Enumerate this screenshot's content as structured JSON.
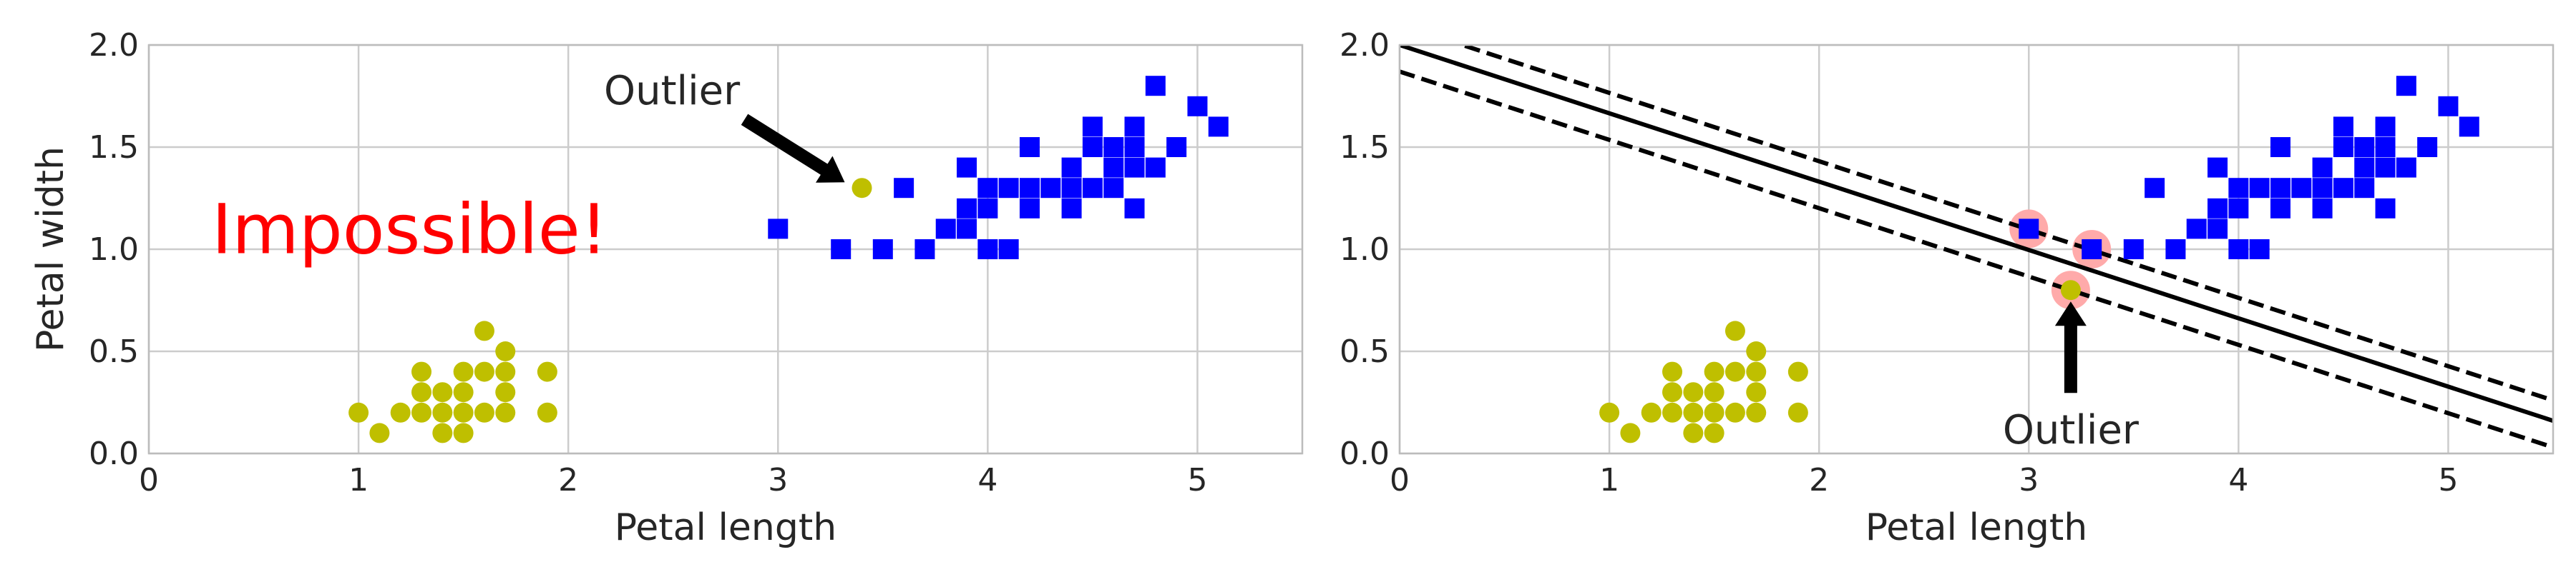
{
  "chart_data": [
    {
      "type": "scatter",
      "xlabel": "",
      "ylabel": "Petal width",
      "xlim": [
        0,
        5.5
      ],
      "ylim": [
        0,
        2.0
      ],
      "xticks": [
        "0",
        "1",
        "2",
        "3",
        "4",
        "5"
      ],
      "yticks": [
        "0.0",
        "0.5",
        "1.0",
        "1.5",
        "2.0"
      ],
      "grid": true,
      "series": [
        {
          "marker": "circle",
          "color": "#bfbf00",
          "points": [
            [
              1.0,
              0.2
            ],
            [
              1.1,
              0.1
            ],
            [
              1.2,
              0.2
            ],
            [
              1.3,
              0.2
            ],
            [
              1.3,
              0.3
            ],
            [
              1.3,
              0.4
            ],
            [
              1.4,
              0.1
            ],
            [
              1.4,
              0.2
            ],
            [
              1.4,
              0.3
            ],
            [
              1.5,
              0.1
            ],
            [
              1.5,
              0.2
            ],
            [
              1.5,
              0.3
            ],
            [
              1.5,
              0.4
            ],
            [
              1.6,
              0.2
            ],
            [
              1.6,
              0.4
            ],
            [
              1.6,
              0.6
            ],
            [
              1.7,
              0.2
            ],
            [
              1.7,
              0.3
            ],
            [
              1.7,
              0.4
            ],
            [
              1.7,
              0.5
            ],
            [
              1.9,
              0.2
            ],
            [
              1.9,
              0.4
            ],
            [
              3.4,
              1.3
            ]
          ]
        },
        {
          "marker": "square",
          "color": "#0000ff",
          "points": [
            [
              3.0,
              1.1
            ],
            [
              3.3,
              1.0
            ],
            [
              3.5,
              1.0
            ],
            [
              3.6,
              1.3
            ],
            [
              3.7,
              1.0
            ],
            [
              3.8,
              1.1
            ],
            [
              3.9,
              1.1
            ],
            [
              3.9,
              1.2
            ],
            [
              3.9,
              1.4
            ],
            [
              4.0,
              1.0
            ],
            [
              4.0,
              1.2
            ],
            [
              4.0,
              1.3
            ],
            [
              4.1,
              1.0
            ],
            [
              4.1,
              1.3
            ],
            [
              4.2,
              1.2
            ],
            [
              4.2,
              1.3
            ],
            [
              4.2,
              1.5
            ],
            [
              4.3,
              1.3
            ],
            [
              4.4,
              1.2
            ],
            [
              4.4,
              1.3
            ],
            [
              4.4,
              1.4
            ],
            [
              4.5,
              1.3
            ],
            [
              4.5,
              1.5
            ],
            [
              4.5,
              1.6
            ],
            [
              4.6,
              1.3
            ],
            [
              4.6,
              1.4
            ],
            [
              4.6,
              1.5
            ],
            [
              4.7,
              1.2
            ],
            [
              4.7,
              1.4
            ],
            [
              4.7,
              1.5
            ],
            [
              4.7,
              1.6
            ],
            [
              4.8,
              1.4
            ],
            [
              4.8,
              1.8
            ],
            [
              4.9,
              1.5
            ],
            [
              5.0,
              1.7
            ],
            [
              5.1,
              1.6
            ]
          ]
        }
      ],
      "annotations": [
        {
          "text": "Outlier",
          "arrow_to": [
            3.4,
            1.3
          ]
        },
        {
          "text": "Impossible!",
          "color": "#ff0000"
        }
      ]
    },
    {
      "type": "scatter",
      "xlabel": "Petal length",
      "ylabel": "",
      "xlim": [
        0,
        5.5
      ],
      "ylim": [
        0,
        2.0
      ],
      "xticks": [
        "0",
        "1",
        "2",
        "3",
        "4",
        "5"
      ],
      "yticks": [
        "0.0",
        "0.5",
        "1.0",
        "1.5",
        "2.0"
      ],
      "grid": true,
      "series": [
        {
          "marker": "circle",
          "color": "#bfbf00",
          "points": [
            [
              1.0,
              0.2
            ],
            [
              1.1,
              0.1
            ],
            [
              1.2,
              0.2
            ],
            [
              1.3,
              0.2
            ],
            [
              1.3,
              0.3
            ],
            [
              1.3,
              0.4
            ],
            [
              1.4,
              0.1
            ],
            [
              1.4,
              0.2
            ],
            [
              1.4,
              0.3
            ],
            [
              1.5,
              0.1
            ],
            [
              1.5,
              0.2
            ],
            [
              1.5,
              0.3
            ],
            [
              1.5,
              0.4
            ],
            [
              1.6,
              0.2
            ],
            [
              1.6,
              0.4
            ],
            [
              1.6,
              0.6
            ],
            [
              1.7,
              0.2
            ],
            [
              1.7,
              0.3
            ],
            [
              1.7,
              0.4
            ],
            [
              1.7,
              0.5
            ],
            [
              1.9,
              0.2
            ],
            [
              1.9,
              0.4
            ],
            [
              3.2,
              0.8
            ]
          ]
        },
        {
          "marker": "square",
          "color": "#0000ff",
          "points": [
            [
              3.0,
              1.1
            ],
            [
              3.3,
              1.0
            ],
            [
              3.5,
              1.0
            ],
            [
              3.6,
              1.3
            ],
            [
              3.7,
              1.0
            ],
            [
              3.8,
              1.1
            ],
            [
              3.9,
              1.1
            ],
            [
              3.9,
              1.2
            ],
            [
              3.9,
              1.4
            ],
            [
              4.0,
              1.0
            ],
            [
              4.0,
              1.2
            ],
            [
              4.0,
              1.3
            ],
            [
              4.1,
              1.0
            ],
            [
              4.1,
              1.3
            ],
            [
              4.2,
              1.2
            ],
            [
              4.2,
              1.3
            ],
            [
              4.2,
              1.5
            ],
            [
              4.3,
              1.3
            ],
            [
              4.4,
              1.2
            ],
            [
              4.4,
              1.3
            ],
            [
              4.4,
              1.4
            ],
            [
              4.5,
              1.3
            ],
            [
              4.5,
              1.5
            ],
            [
              4.5,
              1.6
            ],
            [
              4.6,
              1.3
            ],
            [
              4.6,
              1.4
            ],
            [
              4.6,
              1.5
            ],
            [
              4.7,
              1.2
            ],
            [
              4.7,
              1.4
            ],
            [
              4.7,
              1.5
            ],
            [
              4.7,
              1.6
            ],
            [
              4.8,
              1.4
            ],
            [
              4.8,
              1.8
            ],
            [
              4.9,
              1.5
            ],
            [
              5.0,
              1.7
            ],
            [
              5.1,
              1.6
            ]
          ]
        }
      ],
      "support_vectors": {
        "color": "#ffaaaa",
        "points": [
          [
            3.0,
            1.1
          ],
          [
            3.3,
            1.0
          ],
          [
            3.2,
            0.8
          ]
        ]
      },
      "lines": [
        {
          "style": "solid",
          "points": [
            [
              0,
              2.0
            ],
            [
              5.5,
              0.16
            ]
          ]
        },
        {
          "style": "dashed",
          "points": [
            [
              0,
              2.1
            ],
            [
              5.5,
              0.26
            ]
          ]
        },
        {
          "style": "dashed",
          "points": [
            [
              0,
              1.87
            ],
            [
              5.5,
              0.03
            ]
          ]
        }
      ],
      "annotations": [
        {
          "text": "Outlier",
          "arrow_to": [
            3.2,
            0.8
          ]
        }
      ]
    }
  ],
  "labels": {
    "left_xlabel": "Petal length",
    "left_ylabel": "Petal width",
    "right_xlabel": "Petal length",
    "outlier_left": "Outlier",
    "outlier_right": "Outlier",
    "impossible": "Impossible!"
  },
  "colors": {
    "axes_edge": "#bcbcbc",
    "grid": "#cccccc",
    "text": "#262626",
    "impossible": "#ff0000"
  }
}
